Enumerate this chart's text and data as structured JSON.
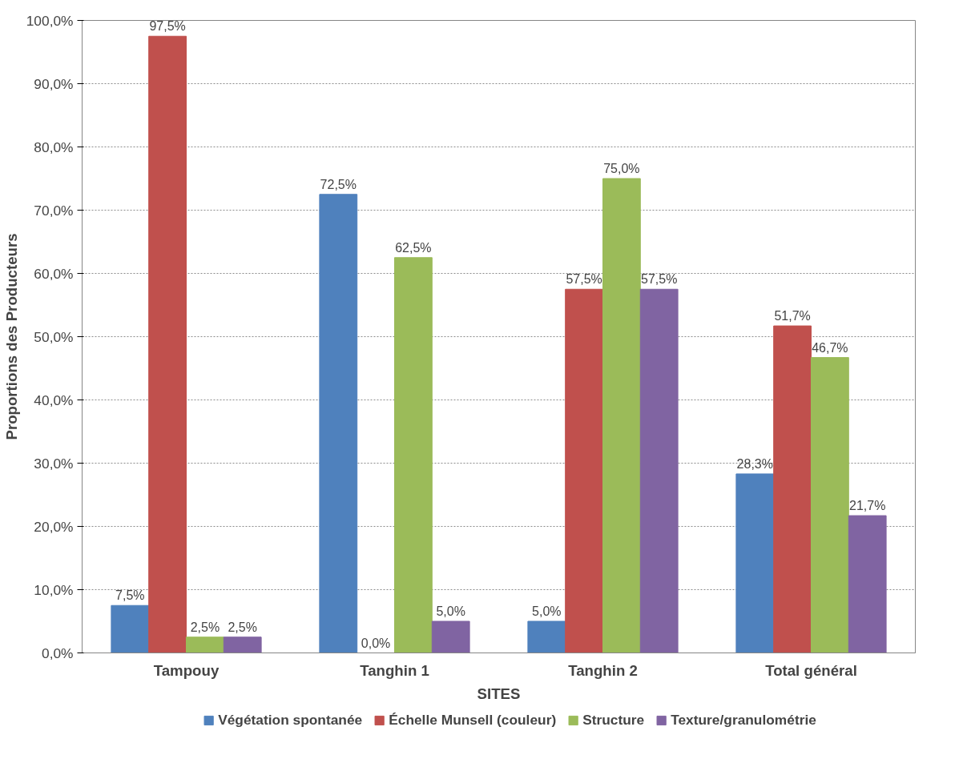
{
  "chart_data": {
    "type": "bar",
    "xlabel": "SITES",
    "ylabel": "Proportions des Producteurs",
    "categories": [
      "Tampouy",
      "Tanghin 1",
      "Tanghin 2",
      "Total général"
    ],
    "series": [
      {
        "name": "Végétation spontanée",
        "color": "#4f81bd",
        "values": [
          7.5,
          72.5,
          5.0,
          28.3
        ],
        "value_labels": [
          "7,5%",
          "72,5%",
          "5,0%",
          "28,3%"
        ]
      },
      {
        "name": "Échelle Munsell (couleur)",
        "color": "#c0504d",
        "values": [
          97.5,
          0.0,
          57.5,
          51.7
        ],
        "value_labels": [
          "97,5%",
          "0,0%",
          "57,5%",
          "51,7%"
        ]
      },
      {
        "name": "Structure",
        "color": "#9bbb59",
        "values": [
          2.5,
          62.5,
          75.0,
          46.7
        ],
        "value_labels": [
          "2,5%",
          "62,5%",
          "75,0%",
          "46,7%"
        ]
      },
      {
        "name": "Texture/granulométrie",
        "color": "#8064a2",
        "values": [
          2.5,
          5.0,
          57.5,
          21.7
        ],
        "value_labels": [
          "2,5%",
          "5,0%",
          "57,5%",
          "21,7%"
        ]
      }
    ],
    "ylim": [
      0,
      100
    ],
    "yticks": [
      {
        "value": 0,
        "label": "0,0%"
      },
      {
        "value": 10,
        "label": "10,0%"
      },
      {
        "value": 20,
        "label": "20,0%"
      },
      {
        "value": 30,
        "label": "30,0%"
      },
      {
        "value": 40,
        "label": "40,0%"
      },
      {
        "value": 50,
        "label": "50,0%"
      },
      {
        "value": 60,
        "label": "60,0%"
      },
      {
        "value": 70,
        "label": "70,0%"
      },
      {
        "value": 80,
        "label": "80,0%"
      },
      {
        "value": 90,
        "label": "90,0%"
      },
      {
        "value": 100,
        "label": "100,0%"
      }
    ],
    "grid": "y",
    "legend": "bottom"
  }
}
